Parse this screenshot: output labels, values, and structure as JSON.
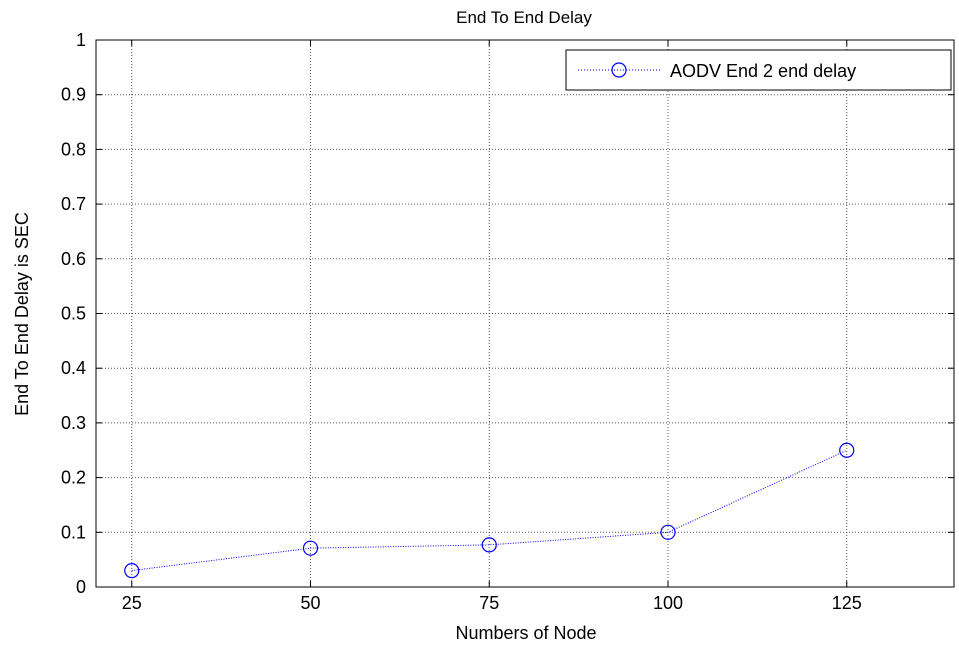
{
  "chart_data": {
    "type": "line",
    "title": "End To End Delay",
    "xlabel": "Numbers of Node",
    "ylabel": "End To End Delay is SEC",
    "xlim": [
      20,
      140
    ],
    "ylim": [
      0,
      1
    ],
    "xticks": [
      25,
      50,
      75,
      100,
      125
    ],
    "xtick_labels": [
      "25",
      "50",
      "75",
      "100",
      "125"
    ],
    "yticks": [
      0,
      0.1,
      0.2,
      0.3,
      0.4,
      0.5,
      0.6,
      0.7,
      0.8,
      0.9,
      1
    ],
    "ytick_labels": [
      "0",
      "0.1",
      "0.2",
      "0.3",
      "0.4",
      "0.5",
      "0.6",
      "0.7",
      "0.8",
      "0.9",
      "1"
    ],
    "grid": true,
    "legend": "top-right",
    "series": [
      {
        "name": "AODV End 2 end delay",
        "color": "#0000ff",
        "marker": "circle",
        "x": [
          25,
          50,
          75,
          100,
          125
        ],
        "values": [
          0.03,
          0.071,
          0.077,
          0.1,
          0.25
        ]
      }
    ]
  }
}
